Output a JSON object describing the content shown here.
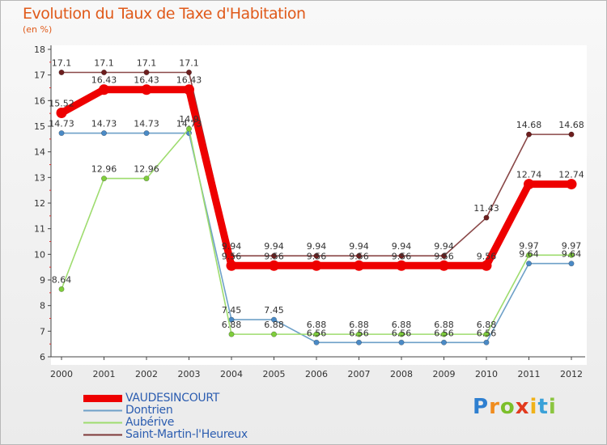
{
  "title": "Evolution du Taux de Taxe d'Habitation",
  "subtitle": "(en %)",
  "brand": {
    "text": "Proxiti",
    "letters": [
      "P",
      "r",
      "o",
      "x",
      "i",
      "t",
      "i"
    ],
    "colors": [
      "#2e7fd0",
      "#f08c1e",
      "#7cbf2a",
      "#e23a1e",
      "#f0b21a",
      "#3aa1d8",
      "#8bc540"
    ]
  },
  "chart_data": {
    "type": "line",
    "title": "Evolution du Taux de Taxe d'Habitation",
    "ylabel": "(en %)",
    "xlabel": "",
    "x": [
      "2000",
      "2001",
      "2002",
      "2003",
      "2004",
      "2005",
      "2006",
      "2007",
      "2008",
      "2009",
      "2010",
      "2011",
      "2012"
    ],
    "ylim": [
      6,
      18
    ],
    "yticks": [
      6,
      7,
      8,
      9,
      10,
      11,
      12,
      13,
      14,
      15,
      16,
      17,
      18
    ],
    "grid": false,
    "legend_position": "bottom-left",
    "series": [
      {
        "name": "VAUDESINCOURT",
        "color": "#ee0000",
        "values": [
          15.52,
          16.43,
          16.43,
          16.43,
          9.56,
          9.56,
          9.56,
          9.56,
          9.56,
          9.56,
          9.56,
          12.74,
          12.74
        ],
        "labels": [
          "15.52",
          "16.43",
          "16.43",
          "16.43",
          "9.56",
          "9.56",
          "9.56",
          "9.56",
          "9.56",
          "9.56",
          "9.56",
          "12.74",
          "12.74"
        ]
      },
      {
        "name": "Dontrien",
        "color": "#6ea0c8",
        "values": [
          14.73,
          14.73,
          14.73,
          14.73,
          7.45,
          7.45,
          6.56,
          6.56,
          6.56,
          6.56,
          6.56,
          9.64,
          9.64
        ],
        "labels": [
          "14.73",
          "14.73",
          "14.73",
          "14.73",
          "7.45",
          "7.45",
          "6.56",
          "6.56",
          "6.56",
          "6.56",
          "6.56",
          "9.64",
          "9.64"
        ]
      },
      {
        "name": "Aubérive",
        "color": "#9edc6e",
        "values": [
          8.64,
          12.96,
          12.96,
          14.9,
          6.88,
          6.88,
          6.88,
          6.88,
          6.88,
          6.88,
          6.88,
          9.97,
          9.97
        ],
        "labels": [
          "8.64",
          "12.96",
          "12.96",
          "14.9",
          "6.88",
          "6.88",
          "6.88",
          "6.88",
          "6.88",
          "6.88",
          "6.88",
          "9.97",
          "9.97"
        ]
      },
      {
        "name": "Saint-Martin-l'Heureux",
        "color": "#7e3838",
        "values": [
          17.1,
          17.1,
          17.1,
          17.1,
          9.94,
          9.94,
          9.94,
          9.94,
          9.94,
          9.94,
          11.43,
          14.68,
          14.68
        ],
        "labels": [
          "17.1",
          "17.1",
          "17.1",
          "17.1",
          "9.94",
          "9.94",
          "9.94",
          "9.94",
          "9.94",
          "9.94",
          "11.43",
          "14.68",
          "14.68"
        ]
      }
    ]
  }
}
